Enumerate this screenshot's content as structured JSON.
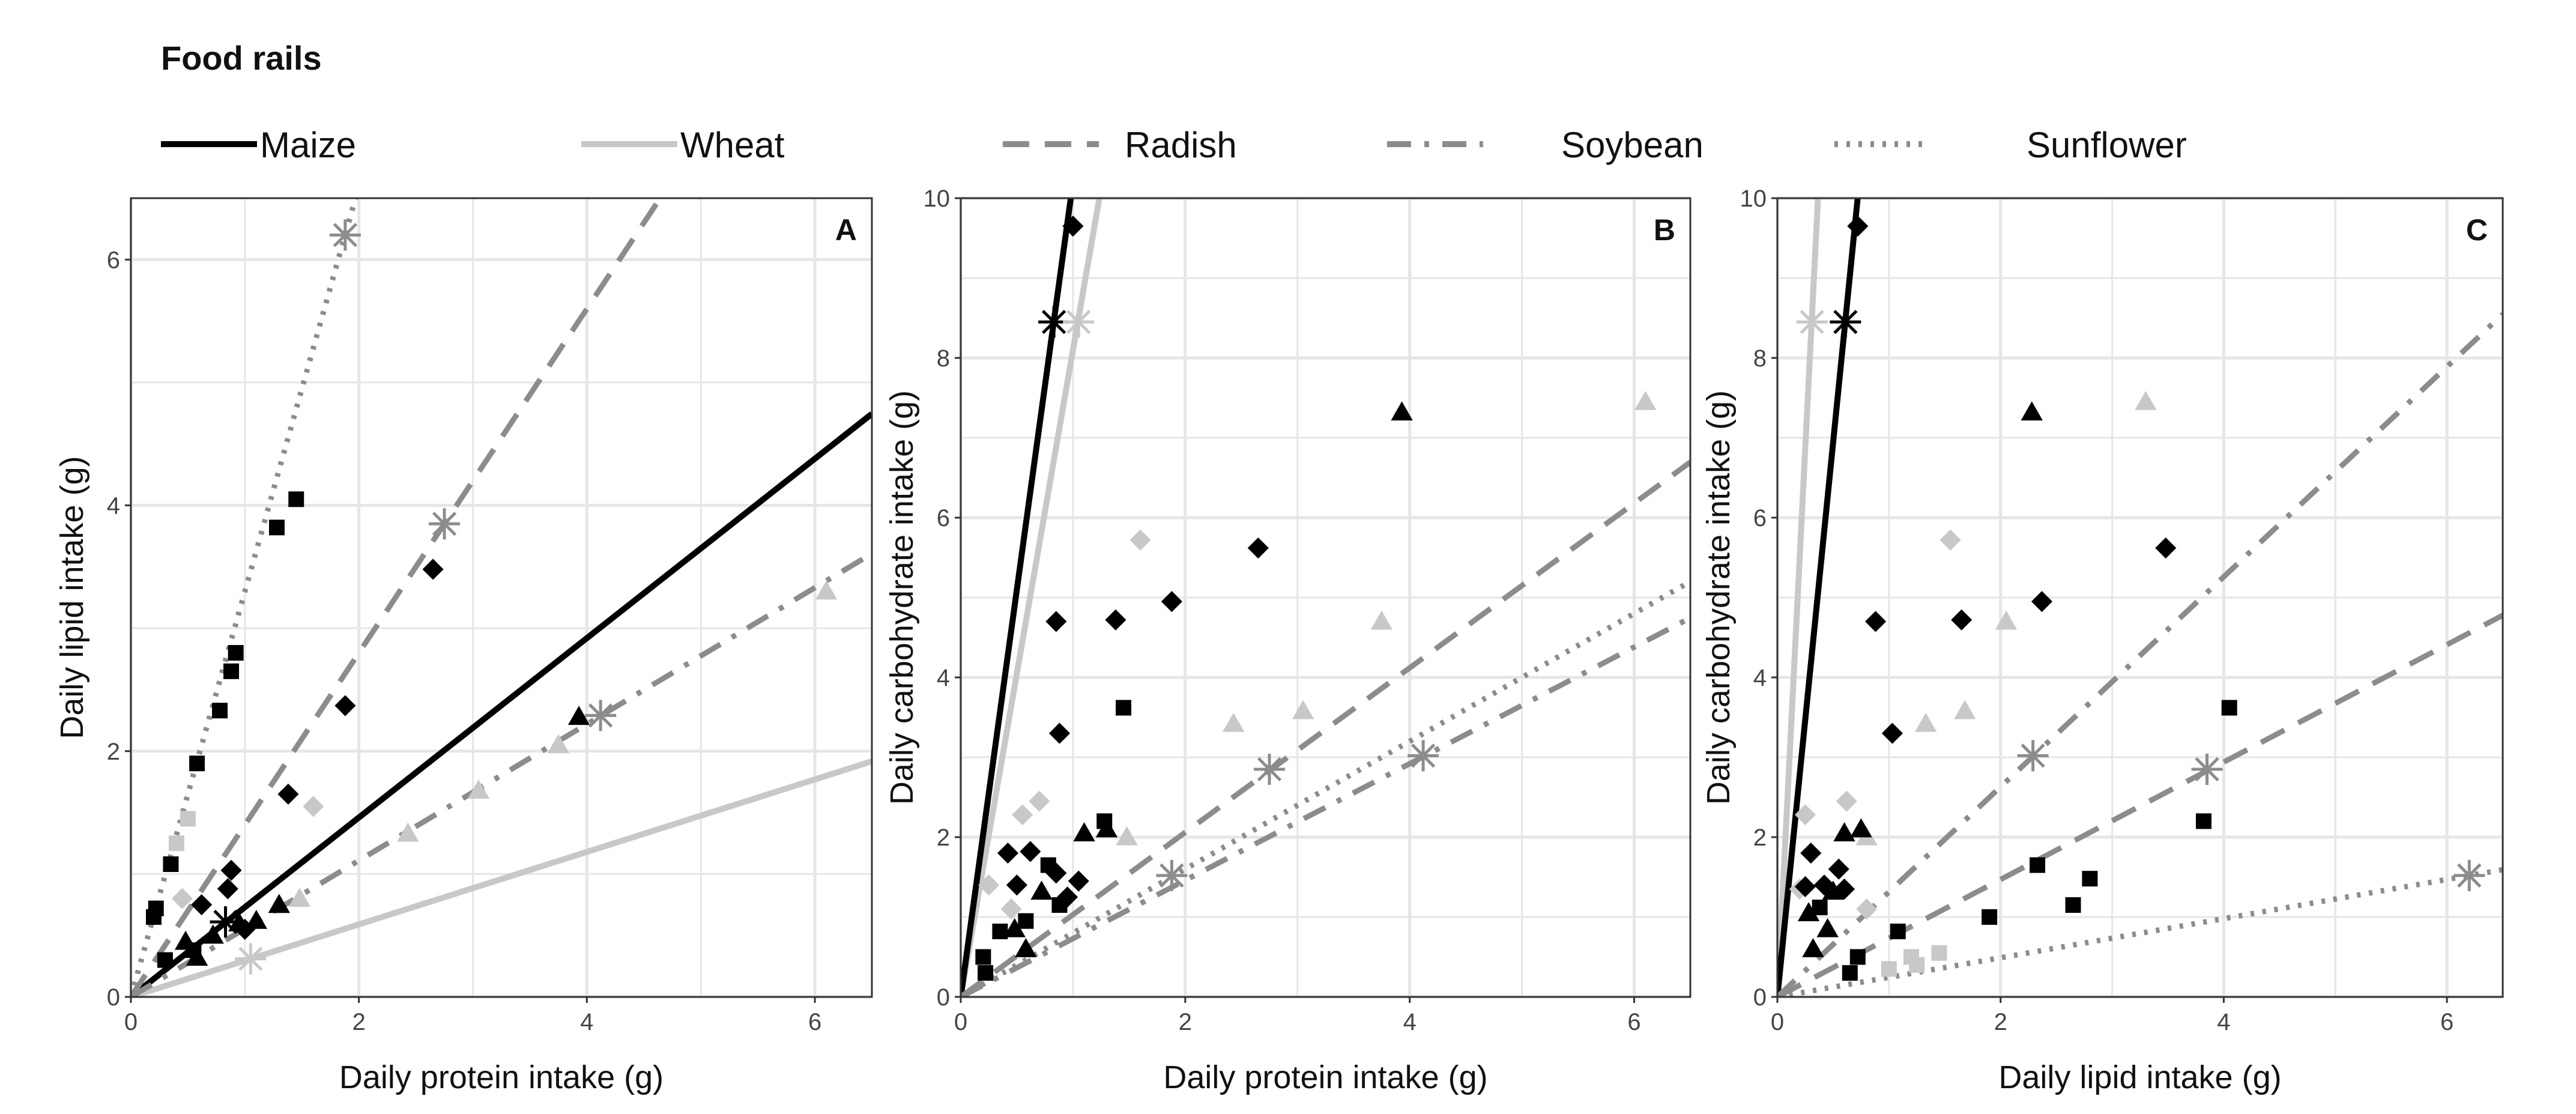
{
  "legend": {
    "title": "Food rails",
    "items": [
      {
        "label": "Maize",
        "style": "solid",
        "color": "#000000"
      },
      {
        "label": "Wheat",
        "style": "solid",
        "color": "#c8c8c8"
      },
      {
        "label": "Radish",
        "style": "dashed",
        "color": "#8c8c8c"
      },
      {
        "label": "Soybean",
        "style": "dashdot",
        "color": "#8c8c8c"
      },
      {
        "label": "Sunflower",
        "style": "dotted",
        "color": "#8c8c8c"
      }
    ]
  },
  "colors": {
    "black_points": "#000000",
    "grey_points": "#c8c8c8",
    "grid": "#e6e6e6",
    "panel_border": "#333333"
  },
  "chart_data": [
    {
      "panel": "A",
      "type": "scatter",
      "xlabel": "Daily protein intake (g)",
      "ylabel": "Daily lipid intake (g)",
      "xlim": [
        0,
        6.5
      ],
      "ylim": [
        0,
        6.5
      ],
      "xticks": [
        "0",
        "2",
        "4",
        "6"
      ],
      "yticks": [
        "0",
        "2",
        "4",
        "6"
      ],
      "rails": [
        {
          "food": "Maize",
          "slope": 0.73,
          "star": [
            0.83,
            0.61
          ]
        },
        {
          "food": "Wheat",
          "slope": 0.295,
          "star": [
            1.05,
            0.31
          ]
        },
        {
          "food": "Radish",
          "slope": 1.4,
          "star": [
            2.75,
            3.85
          ]
        },
        {
          "food": "Soybean",
          "slope": 0.555,
          "star": [
            4.12,
            2.29
          ]
        },
        {
          "food": "Sunflower",
          "slope": 3.3,
          "star": [
            1.88,
            6.2
          ]
        }
      ],
      "points_black": [
        {
          "shape": "square",
          "x": 0.2,
          "y": 0.65
        },
        {
          "shape": "square",
          "x": 0.22,
          "y": 0.72
        },
        {
          "shape": "square",
          "x": 0.35,
          "y": 1.08
        },
        {
          "shape": "square",
          "x": 0.58,
          "y": 1.9
        },
        {
          "shape": "square",
          "x": 0.78,
          "y": 2.33
        },
        {
          "shape": "square",
          "x": 0.88,
          "y": 2.65
        },
        {
          "shape": "square",
          "x": 0.92,
          "y": 2.8
        },
        {
          "shape": "square",
          "x": 1.28,
          "y": 3.82
        },
        {
          "shape": "square",
          "x": 1.45,
          "y": 4.05
        },
        {
          "shape": "square",
          "x": 0.3,
          "y": 0.3
        },
        {
          "shape": "square",
          "x": 0.55,
          "y": 0.38
        },
        {
          "shape": "diamond",
          "x": 0.85,
          "y": 0.88
        },
        {
          "shape": "diamond",
          "x": 0.88,
          "y": 1.03
        },
        {
          "shape": "diamond",
          "x": 1.38,
          "y": 1.65
        },
        {
          "shape": "diamond",
          "x": 1.88,
          "y": 2.37
        },
        {
          "shape": "diamond",
          "x": 2.65,
          "y": 3.48
        },
        {
          "shape": "diamond",
          "x": 0.62,
          "y": 0.75
        },
        {
          "shape": "diamond",
          "x": 1.0,
          "y": 0.55
        },
        {
          "shape": "triangle",
          "x": 0.48,
          "y": 0.45
        },
        {
          "shape": "triangle",
          "x": 0.58,
          "y": 0.32
        },
        {
          "shape": "triangle",
          "x": 0.72,
          "y": 0.5
        },
        {
          "shape": "triangle",
          "x": 0.95,
          "y": 0.6
        },
        {
          "shape": "triangle",
          "x": 1.1,
          "y": 0.62
        },
        {
          "shape": "triangle",
          "x": 1.3,
          "y": 0.75
        },
        {
          "shape": "triangle",
          "x": 3.93,
          "y": 2.28
        }
      ],
      "points_grey": [
        {
          "shape": "square",
          "x": 0.5,
          "y": 1.45
        },
        {
          "shape": "square",
          "x": 0.4,
          "y": 1.25
        },
        {
          "shape": "diamond",
          "x": 1.6,
          "y": 1.55
        },
        {
          "shape": "diamond",
          "x": 0.45,
          "y": 0.8
        },
        {
          "shape": "triangle",
          "x": 2.43,
          "y": 1.33
        },
        {
          "shape": "triangle",
          "x": 3.05,
          "y": 1.68
        },
        {
          "shape": "triangle",
          "x": 3.75,
          "y": 2.05
        },
        {
          "shape": "triangle",
          "x": 6.1,
          "y": 3.3
        },
        {
          "shape": "triangle",
          "x": 1.48,
          "y": 0.8
        }
      ]
    },
    {
      "panel": "B",
      "type": "scatter",
      "xlabel": "Daily protein intake (g)",
      "ylabel": "Daily carbohydrate intake (g)",
      "xlim": [
        0,
        6.5
      ],
      "ylim": [
        0,
        10
      ],
      "xticks": [
        "0",
        "2",
        "4",
        "6"
      ],
      "yticks": [
        "0",
        "2",
        "4",
        "6",
        "8",
        "10"
      ],
      "rails": [
        {
          "food": "Maize",
          "slope": 10.2,
          "star": [
            0.83,
            8.45
          ]
        },
        {
          "food": "Wheat",
          "slope": 8.1,
          "star": [
            1.05,
            8.45
          ]
        },
        {
          "food": "Radish",
          "slope": 1.03,
          "star": [
            2.75,
            2.85
          ]
        },
        {
          "food": "Soybean",
          "slope": 0.73,
          "star": [
            4.12,
            3.02
          ]
        },
        {
          "food": "Sunflower",
          "slope": 0.8,
          "star": [
            1.88,
            1.52
          ]
        }
      ],
      "points_black": [
        {
          "shape": "diamond",
          "x": 1.0,
          "y": 9.65
        },
        {
          "shape": "diamond",
          "x": 0.85,
          "y": 4.7
        },
        {
          "shape": "diamond",
          "x": 1.38,
          "y": 4.72
        },
        {
          "shape": "diamond",
          "x": 1.88,
          "y": 4.95
        },
        {
          "shape": "diamond",
          "x": 2.65,
          "y": 5.62
        },
        {
          "shape": "diamond",
          "x": 0.88,
          "y": 3.3
        },
        {
          "shape": "diamond",
          "x": 0.42,
          "y": 1.8
        },
        {
          "shape": "diamond",
          "x": 0.62,
          "y": 1.82
        },
        {
          "shape": "diamond",
          "x": 0.85,
          "y": 1.55
        },
        {
          "shape": "diamond",
          "x": 1.05,
          "y": 1.45
        },
        {
          "shape": "diamond",
          "x": 0.5,
          "y": 1.4
        },
        {
          "shape": "diamond",
          "x": 0.95,
          "y": 1.25
        },
        {
          "shape": "square",
          "x": 1.45,
          "y": 3.62
        },
        {
          "shape": "square",
          "x": 1.28,
          "y": 2.2
        },
        {
          "shape": "square",
          "x": 0.78,
          "y": 1.65
        },
        {
          "shape": "square",
          "x": 0.2,
          "y": 0.5
        },
        {
          "shape": "square",
          "x": 0.22,
          "y": 0.3
        },
        {
          "shape": "square",
          "x": 0.58,
          "y": 0.95
        },
        {
          "shape": "square",
          "x": 0.88,
          "y": 1.15
        },
        {
          "shape": "square",
          "x": 0.35,
          "y": 0.82
        },
        {
          "shape": "triangle",
          "x": 3.93,
          "y": 7.32
        },
        {
          "shape": "triangle",
          "x": 1.1,
          "y": 2.05
        },
        {
          "shape": "triangle",
          "x": 1.3,
          "y": 2.1
        },
        {
          "shape": "triangle",
          "x": 0.72,
          "y": 1.32
        },
        {
          "shape": "triangle",
          "x": 0.48,
          "y": 0.85
        },
        {
          "shape": "triangle",
          "x": 0.58,
          "y": 0.6
        }
      ],
      "points_grey": [
        {
          "shape": "triangle",
          "x": 6.1,
          "y": 7.45
        },
        {
          "shape": "triangle",
          "x": 3.75,
          "y": 4.7
        },
        {
          "shape": "triangle",
          "x": 3.05,
          "y": 3.58
        },
        {
          "shape": "triangle",
          "x": 2.43,
          "y": 3.42
        },
        {
          "shape": "triangle",
          "x": 1.48,
          "y": 2.0
        },
        {
          "shape": "diamond",
          "x": 1.6,
          "y": 5.72
        },
        {
          "shape": "diamond",
          "x": 0.7,
          "y": 2.45
        },
        {
          "shape": "diamond",
          "x": 0.55,
          "y": 2.28
        },
        {
          "shape": "diamond",
          "x": 0.25,
          "y": 1.4
        },
        {
          "shape": "diamond",
          "x": 0.45,
          "y": 1.1
        }
      ]
    },
    {
      "panel": "C",
      "type": "scatter",
      "xlabel": "Daily lipid intake (g)",
      "ylabel": "Daily carbohydrate intake (g)",
      "xlim": [
        0,
        6.5
      ],
      "ylim": [
        0,
        10
      ],
      "xticks": [
        "0",
        "2",
        "4",
        "6"
      ],
      "yticks": [
        "0",
        "2",
        "4",
        "6",
        "8",
        "10"
      ],
      "rails": [
        {
          "food": "Maize",
          "slope": 13.9,
          "star": [
            0.61,
            8.45
          ]
        },
        {
          "food": "Wheat",
          "slope": 27.5,
          "star": [
            0.31,
            8.45
          ]
        },
        {
          "food": "Radish",
          "slope": 0.735,
          "star": [
            3.85,
            2.85
          ]
        },
        {
          "food": "Soybean",
          "slope": 1.315,
          "star": [
            2.29,
            3.02
          ]
        },
        {
          "food": "Sunflower",
          "slope": 0.245,
          "star": [
            6.2,
            1.52
          ]
        }
      ],
      "points_black": [
        {
          "shape": "diamond",
          "x": 0.72,
          "y": 9.65
        },
        {
          "shape": "diamond",
          "x": 0.88,
          "y": 4.7
        },
        {
          "shape": "diamond",
          "x": 1.65,
          "y": 4.72
        },
        {
          "shape": "diamond",
          "x": 2.37,
          "y": 4.95
        },
        {
          "shape": "diamond",
          "x": 3.48,
          "y": 5.62
        },
        {
          "shape": "diamond",
          "x": 1.03,
          "y": 3.3
        },
        {
          "shape": "diamond",
          "x": 0.3,
          "y": 1.8
        },
        {
          "shape": "diamond",
          "x": 0.55,
          "y": 1.6
        },
        {
          "shape": "diamond",
          "x": 0.42,
          "y": 1.4
        },
        {
          "shape": "diamond",
          "x": 0.6,
          "y": 1.35
        },
        {
          "shape": "diamond",
          "x": 0.25,
          "y": 1.38
        },
        {
          "shape": "square",
          "x": 4.05,
          "y": 3.62
        },
        {
          "shape": "square",
          "x": 3.82,
          "y": 2.2
        },
        {
          "shape": "square",
          "x": 2.33,
          "y": 1.65
        },
        {
          "shape": "square",
          "x": 2.8,
          "y": 1.48
        },
        {
          "shape": "square",
          "x": 2.65,
          "y": 1.15
        },
        {
          "shape": "square",
          "x": 1.9,
          "y": 1.0
        },
        {
          "shape": "square",
          "x": 1.08,
          "y": 0.82
        },
        {
          "shape": "square",
          "x": 0.65,
          "y": 0.3
        },
        {
          "shape": "square",
          "x": 0.72,
          "y": 0.5
        },
        {
          "shape": "square",
          "x": 0.38,
          "y": 1.12
        },
        {
          "shape": "triangle",
          "x": 2.28,
          "y": 7.32
        },
        {
          "shape": "triangle",
          "x": 0.6,
          "y": 2.05
        },
        {
          "shape": "triangle",
          "x": 0.75,
          "y": 2.1
        },
        {
          "shape": "triangle",
          "x": 0.5,
          "y": 1.32
        },
        {
          "shape": "triangle",
          "x": 0.45,
          "y": 0.85
        },
        {
          "shape": "triangle",
          "x": 0.32,
          "y": 0.6
        },
        {
          "shape": "triangle",
          "x": 0.28,
          "y": 1.05
        }
      ],
      "points_grey": [
        {
          "shape": "triangle",
          "x": 3.3,
          "y": 7.45
        },
        {
          "shape": "triangle",
          "x": 2.05,
          "y": 4.7
        },
        {
          "shape": "triangle",
          "x": 1.68,
          "y": 3.58
        },
        {
          "shape": "triangle",
          "x": 1.33,
          "y": 3.42
        },
        {
          "shape": "triangle",
          "x": 0.8,
          "y": 2.0
        },
        {
          "shape": "diamond",
          "x": 1.55,
          "y": 5.72
        },
        {
          "shape": "diamond",
          "x": 0.62,
          "y": 2.45
        },
        {
          "shape": "diamond",
          "x": 0.25,
          "y": 2.28
        },
        {
          "shape": "diamond",
          "x": 0.2,
          "y": 1.35
        },
        {
          "shape": "diamond",
          "x": 0.8,
          "y": 1.1
        },
        {
          "shape": "square",
          "x": 1.45,
          "y": 0.55
        },
        {
          "shape": "square",
          "x": 1.25,
          "y": 0.4
        },
        {
          "shape": "square",
          "x": 1.0,
          "y": 0.35
        },
        {
          "shape": "square",
          "x": 1.2,
          "y": 0.5
        }
      ]
    }
  ]
}
